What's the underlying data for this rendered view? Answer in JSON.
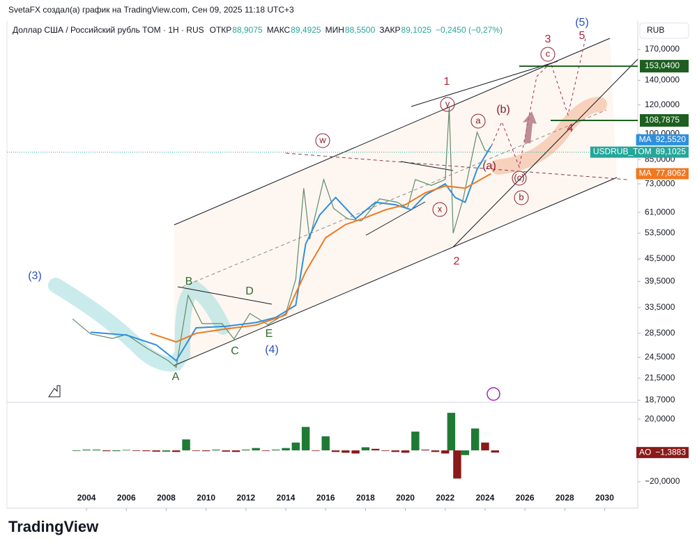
{
  "header": {
    "credit": "SvetaFX создал(а) график на TradingView.com, Сен 09, 2025 11:18 UTC+3",
    "symbol": "Доллар США / Российский рубль TOM · 1Н · RUS",
    "ohlc": [
      {
        "label": "ОТКР",
        "value": "88,9075"
      },
      {
        "label": "МАКС",
        "value": "89,4925"
      },
      {
        "label": "МИН",
        "value": "88,5500"
      },
      {
        "label": "ЗАКР",
        "value": "89,1025"
      }
    ],
    "change": "−0,2450 (−0,27%)",
    "currency": "RUB",
    "brand": "TradingView"
  },
  "chart_data": [
    {
      "type": "line",
      "log_scale": true,
      "grid": false,
      "xlim": [
        2000.01,
        2031.66
      ],
      "xticks": [
        2004,
        2006,
        2008,
        2010,
        2012,
        2014,
        2016,
        2018,
        2020,
        2022,
        2024,
        2026,
        2028,
        2030
      ],
      "ylim": [
        18.46,
        203.5
      ],
      "yticks": [
        {
          "value": 170,
          "label": "170,0000"
        },
        {
          "value": 140,
          "label": "140,0000"
        },
        {
          "value": 120,
          "label": "120,0000"
        },
        {
          "value": 100,
          "label": "100,0000"
        },
        {
          "value": 85,
          "label": "85,0000"
        },
        {
          "value": 73,
          "label": "73,0000"
        },
        {
          "value": 61,
          "label": "61,0000"
        },
        {
          "value": 53.5,
          "label": "53,5000"
        },
        {
          "value": 45.5,
          "label": "45,5000"
        },
        {
          "value": 39.5,
          "label": "39,5000"
        },
        {
          "value": 33.5,
          "label": "33,5000"
        },
        {
          "value": 28.5,
          "label": "28,5000"
        },
        {
          "value": 24.5,
          "label": "24,5000"
        },
        {
          "value": 21.5,
          "label": "21,5000"
        },
        {
          "value": 18.7,
          "label": "18,7000"
        }
      ],
      "series": [
        {
          "name": "USDRUB_TOM",
          "color": "#5f8a6a",
          "label_color": "#26a69a",
          "last_label": "89,1025",
          "x": [
            2003.3,
            2004.2,
            2005.3,
            2006.0,
            2007.0,
            2008.1,
            2008.5,
            2009.1,
            2009.8,
            2010.8,
            2011.4,
            2012.2,
            2013.1,
            2014.0,
            2014.5,
            2014.9,
            2015.2,
            2015.9,
            2016.4,
            2017.1,
            2017.8,
            2018.7,
            2019.6,
            2020.1,
            2020.5,
            2021.3,
            2022.0,
            2022.2,
            2022.4,
            2022.9,
            2023.6,
            2024.0,
            2024.3
          ],
          "values": [
            31.2,
            28.4,
            27.6,
            28.3,
            26.0,
            24.0,
            23.0,
            36.2,
            30.3,
            30.3,
            27.5,
            32.3,
            30.1,
            32.3,
            40.0,
            71,
            51.5,
            75,
            62.5,
            58.6,
            57.8,
            66.4,
            65,
            62.5,
            75,
            72.3,
            75,
            118,
            53.5,
            66.4,
            101,
            90,
            89.1025
          ]
        },
        {
          "name": "MA",
          "color": "#2f8fdd",
          "last_label": "92,5520",
          "x": [
            2004.2,
            2006.0,
            2007.5,
            2008.5,
            2009.5,
            2011.0,
            2012.5,
            2013.5,
            2014.5,
            2015.0,
            2015.7,
            2016.5,
            2017.5,
            2018.5,
            2019.5,
            2020.3,
            2021.0,
            2022.0,
            2022.5,
            2023.0,
            2023.6,
            2024.3
          ],
          "values": [
            28.7,
            28.2,
            26.5,
            24,
            29.5,
            29.8,
            30.5,
            31.5,
            34,
            50,
            60,
            67,
            58.6,
            65,
            64,
            62,
            68,
            73,
            67,
            65,
            80,
            92.552
          ]
        },
        {
          "name": "MA",
          "color": "#f07820",
          "last_label": "77,8062",
          "x": [
            2007.2,
            2008.5,
            2009.5,
            2011.0,
            2012.5,
            2014.0,
            2015.0,
            2016.0,
            2017.0,
            2018.0,
            2019.0,
            2020.0,
            2021.0,
            2022.0,
            2023.0,
            2024.3
          ],
          "values": [
            28.5,
            27,
            28.5,
            29.3,
            30,
            32,
            42,
            52,
            56.5,
            59,
            62,
            64,
            69,
            72,
            71,
            77.8062
          ]
        }
      ],
      "levels": [
        {
          "value": 153.04,
          "label": "153,0400",
          "color": "#1e5e20"
        },
        {
          "value": 108.7875,
          "label": "108,7875",
          "color": "#1e5e20"
        }
      ],
      "annotations": [
        {
          "text": "(3)",
          "color": "#2a4fc4"
        },
        {
          "text": "B",
          "color": "#2e6b2e"
        },
        {
          "text": "D",
          "color": "#2e6b2e"
        },
        {
          "text": "C",
          "color": "#2e6b2e"
        },
        {
          "text": "E",
          "color": "#2e6b2e"
        },
        {
          "text": "(4)",
          "color": "#2a4fc4"
        },
        {
          "text": "A",
          "color": "#2e6b2e"
        },
        {
          "text": "w",
          "color": "#8b1a2a"
        },
        {
          "text": "x",
          "color": "#8b1a2a"
        },
        {
          "text": "y",
          "color": "#8b1a2a"
        },
        {
          "text": "1",
          "color": "#b0243a"
        },
        {
          "text": "2",
          "color": "#b0243a"
        },
        {
          "text": "a",
          "color": "#8b1a2a"
        },
        {
          "text": "(b)",
          "color": "#8b1a2a"
        },
        {
          "text": "(a)",
          "color": "#8b1a2a"
        },
        {
          "text": "(c)",
          "color": "#8b1a2a"
        },
        {
          "text": "b",
          "color": "#8b1a2a"
        },
        {
          "text": "3",
          "color": "#b0243a"
        },
        {
          "text": "c",
          "color": "#8b1a2a"
        },
        {
          "text": "4",
          "color": "#b0243a"
        },
        {
          "text": "5",
          "color": "#b0243a"
        },
        {
          "text": "(5)",
          "color": "#2a4fc4"
        }
      ]
    },
    {
      "type": "bar",
      "xlim": [
        2000.01,
        2031.66
      ],
      "ylim": [
        -25.8,
        27.6
      ],
      "yticks": [
        {
          "value": 20,
          "label": "20,0000"
        },
        {
          "value": -20,
          "label": "−20,0000"
        }
      ],
      "up_color": "#1f7a35",
      "down_color": "#8b1a1a",
      "series": [
        {
          "name": "AO",
          "color": "#8b1a1a",
          "last_label": "−1,3883",
          "x": [
            2003.5,
            2004,
            2004.5,
            2005,
            2005.5,
            2006,
            2006.5,
            2007,
            2007.5,
            2008,
            2008.5,
            2009,
            2009.5,
            2010,
            2010.5,
            2011,
            2011.5,
            2012,
            2012.5,
            2013,
            2013.5,
            2014,
            2014.5,
            2015,
            2015.5,
            2016,
            2016.5,
            2017,
            2017.5,
            2018,
            2018.5,
            2019,
            2019.5,
            2020,
            2020.5,
            2021,
            2021.5,
            2022,
            2022.3,
            2022.6,
            2023,
            2023.5,
            2024,
            2024.5
          ],
          "values": [
            0,
            0.5,
            0.5,
            -0.5,
            -0.5,
            0.3,
            0,
            -0.5,
            -0.8,
            -0.8,
            -1,
            7,
            0,
            -0.5,
            0.5,
            -0.8,
            -1,
            0.5,
            1.5,
            0,
            0.5,
            1.5,
            5,
            15,
            0,
            9,
            -1,
            -1.5,
            -2,
            2,
            1,
            0,
            -1,
            -1.5,
            12,
            0.5,
            -1,
            -2,
            24,
            -18,
            -3,
            14,
            5,
            -1.3883
          ]
        }
      ]
    }
  ]
}
